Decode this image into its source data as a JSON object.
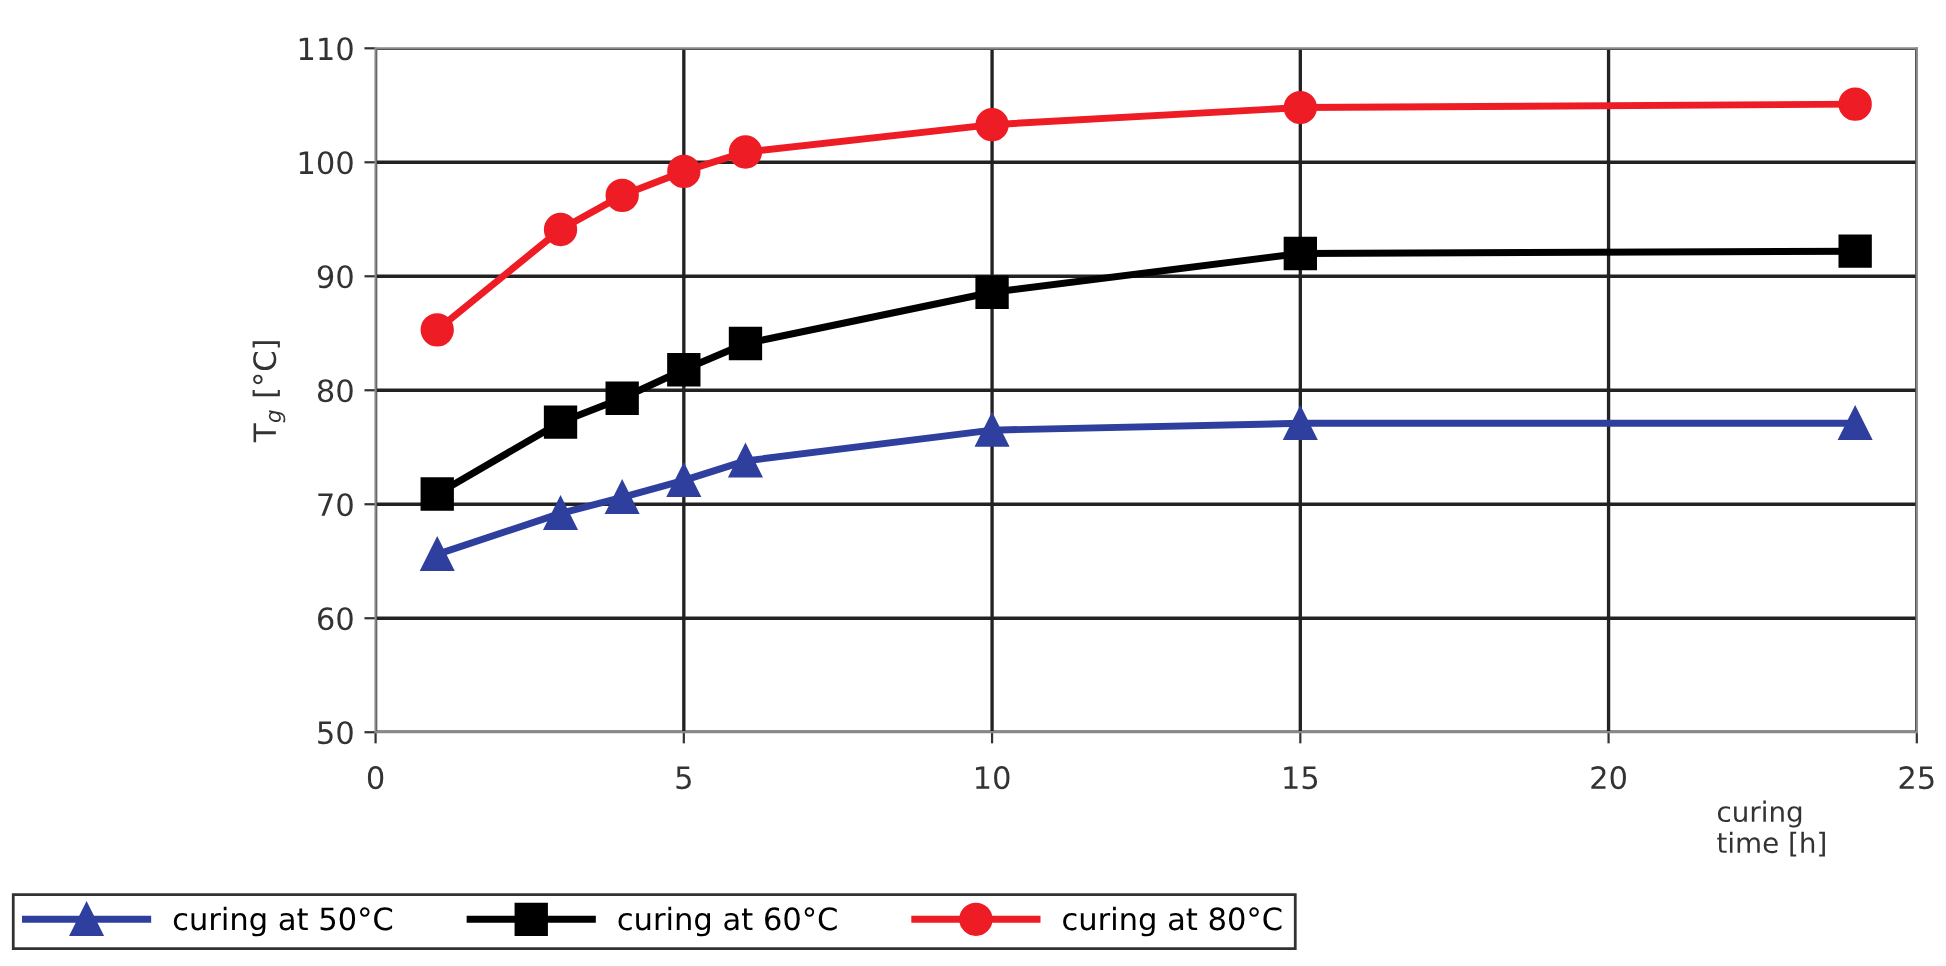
{
  "chart_data": {
    "type": "line",
    "xlabel": "curing\ntime [h]",
    "ylabel": "T$_{g}$ [°C]",
    "xlim": [
      0,
      25
    ],
    "xticks": [
      0,
      5,
      10,
      15,
      20,
      25
    ],
    "ylim": [
      50,
      110
    ],
    "yticks": [
      50,
      60,
      70,
      80,
      90,
      100,
      110
    ],
    "grid": true,
    "legend": "bottom",
    "series": [
      {
        "name": "curing at 50°C",
        "color": "#2e3f9e",
        "marker": "triangle",
        "x": [
          1,
          3,
          4,
          5,
          6,
          10,
          15,
          24
        ],
        "values": [
          65.6,
          69.2,
          70.6,
          72.1,
          73.8,
          76.5,
          77.1,
          77.1
        ]
      },
      {
        "name": "curing at 60°C",
        "color": "#000000",
        "marker": "square",
        "x": [
          1,
          3,
          4,
          5,
          6,
          10,
          15,
          24
        ],
        "values": [
          70.9,
          77.2,
          79.3,
          81.8,
          84.1,
          88.6,
          92,
          92.2
        ]
      },
      {
        "name": "curing at 80°C",
        "color": "#ee1c24",
        "marker": "circle",
        "x": [
          1,
          3,
          4,
          5,
          6,
          10,
          15,
          24
        ],
        "values": [
          85.3,
          94.1,
          97.1,
          99.2,
          100.9,
          103.3,
          104.8,
          105.1
        ]
      }
    ]
  }
}
